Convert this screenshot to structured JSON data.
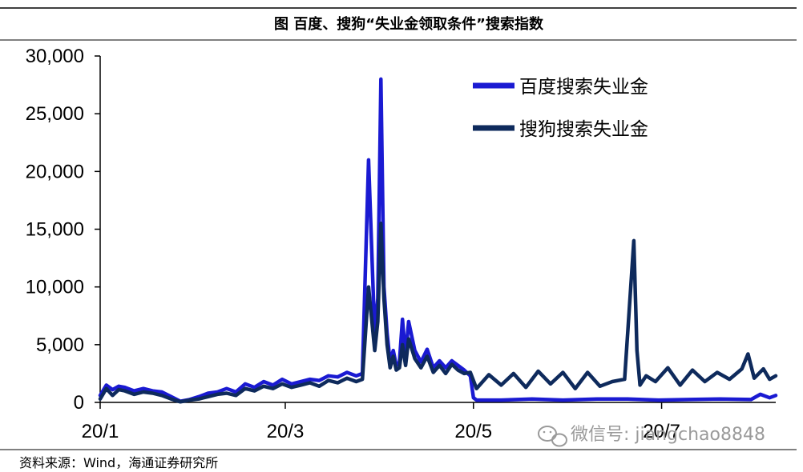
{
  "title": "图  百度、搜狗“失业金领取条件”搜索指数",
  "source": "资料来源：Wind，海通证券研究所",
  "watermark": "微信号: jiangchao8848",
  "colors": {
    "baidu": "#1a1ad2",
    "sogou": "#0e2a5c",
    "axis": "#000000",
    "watermark": "#9a9a9a"
  },
  "chart_data": {
    "type": "line",
    "title": "图  百度、搜狗“失业金领取条件”搜索指数",
    "xlabel": "",
    "ylabel": "",
    "ylim": [
      0,
      30000
    ],
    "yticks": [
      0,
      5000,
      10000,
      15000,
      20000,
      25000,
      30000
    ],
    "ytick_labels": [
      "0",
      "5,000",
      "10,000",
      "15,000",
      "20,000",
      "25,000",
      "30,000"
    ],
    "xlim": [
      "2020-01-01",
      "2020-08-07"
    ],
    "xticks": [
      "2020-01-01",
      "2020-03-01",
      "2020-05-01",
      "2020-07-01"
    ],
    "xtick_labels": [
      "20/1",
      "20/3",
      "20/5",
      "20/7"
    ],
    "grid": false,
    "legend_position": "top-right",
    "series": [
      {
        "name": "百度搜索失业金",
        "color": "#1a1ad2",
        "x": [
          "2020-01-01",
          "2020-01-03",
          "2020-01-05",
          "2020-01-07",
          "2020-01-09",
          "2020-01-12",
          "2020-01-15",
          "2020-01-18",
          "2020-01-21",
          "2020-01-24",
          "2020-01-27",
          "2020-01-30",
          "2020-02-02",
          "2020-02-05",
          "2020-02-08",
          "2020-02-11",
          "2020-02-14",
          "2020-02-17",
          "2020-02-20",
          "2020-02-23",
          "2020-02-26",
          "2020-02-29",
          "2020-03-03",
          "2020-03-06",
          "2020-03-09",
          "2020-03-12",
          "2020-03-15",
          "2020-03-18",
          "2020-03-21",
          "2020-03-24",
          "2020-03-26",
          "2020-03-28",
          "2020-03-30",
          "2020-03-31",
          "2020-04-01",
          "2020-04-02",
          "2020-04-03",
          "2020-04-04",
          "2020-04-05",
          "2020-04-06",
          "2020-04-07",
          "2020-04-08",
          "2020-04-09",
          "2020-04-10",
          "2020-04-12",
          "2020-04-14",
          "2020-04-16",
          "2020-04-18",
          "2020-04-20",
          "2020-04-22",
          "2020-04-24",
          "2020-04-26",
          "2020-04-28",
          "2020-04-30",
          "2020-05-01",
          "2020-05-02",
          "2020-05-10",
          "2020-05-20",
          "2020-05-30",
          "2020-06-10",
          "2020-06-20",
          "2020-06-30",
          "2020-07-10",
          "2020-07-20",
          "2020-07-30",
          "2020-08-02",
          "2020-08-05",
          "2020-08-07"
        ],
        "values": [
          600,
          1500,
          1100,
          1400,
          1300,
          1000,
          1200,
          1000,
          900,
          500,
          100,
          250,
          500,
          800,
          900,
          1200,
          900,
          1600,
          1300,
          1800,
          1500,
          2000,
          1600,
          1800,
          2000,
          1900,
          2300,
          2200,
          2600,
          2300,
          2500,
          21000,
          5800,
          9000,
          28000,
          10000,
          6000,
          3500,
          4500,
          3200,
          3500,
          7200,
          4000,
          7000,
          4500,
          3500,
          4600,
          3000,
          3600,
          3000,
          3600,
          3200,
          2800,
          2300,
          400,
          200,
          200,
          300,
          200,
          300,
          300,
          200,
          250,
          300,
          250,
          700,
          400,
          600
        ]
      },
      {
        "name": "搜狗搜索失业金",
        "color": "#0e2a5c",
        "x": [
          "2020-01-01",
          "2020-01-03",
          "2020-01-05",
          "2020-01-07",
          "2020-01-09",
          "2020-01-12",
          "2020-01-15",
          "2020-01-18",
          "2020-01-21",
          "2020-01-24",
          "2020-01-27",
          "2020-01-30",
          "2020-02-02",
          "2020-02-05",
          "2020-02-08",
          "2020-02-11",
          "2020-02-14",
          "2020-02-17",
          "2020-02-20",
          "2020-02-23",
          "2020-02-26",
          "2020-02-29",
          "2020-03-03",
          "2020-03-06",
          "2020-03-09",
          "2020-03-12",
          "2020-03-15",
          "2020-03-18",
          "2020-03-21",
          "2020-03-24",
          "2020-03-26",
          "2020-03-28",
          "2020-03-30",
          "2020-03-31",
          "2020-04-01",
          "2020-04-02",
          "2020-04-03",
          "2020-04-04",
          "2020-04-05",
          "2020-04-06",
          "2020-04-07",
          "2020-04-08",
          "2020-04-09",
          "2020-04-10",
          "2020-04-12",
          "2020-04-14",
          "2020-04-16",
          "2020-04-18",
          "2020-04-20",
          "2020-04-22",
          "2020-04-24",
          "2020-04-26",
          "2020-04-28",
          "2020-04-30",
          "2020-05-02",
          "2020-05-06",
          "2020-05-10",
          "2020-05-14",
          "2020-05-18",
          "2020-05-22",
          "2020-05-26",
          "2020-05-30",
          "2020-06-03",
          "2020-06-07",
          "2020-06-11",
          "2020-06-15",
          "2020-06-19",
          "2020-06-22",
          "2020-06-23",
          "2020-06-24",
          "2020-06-26",
          "2020-06-29",
          "2020-07-03",
          "2020-07-07",
          "2020-07-11",
          "2020-07-15",
          "2020-07-19",
          "2020-07-23",
          "2020-07-27",
          "2020-07-29",
          "2020-07-31",
          "2020-08-03",
          "2020-08-05",
          "2020-08-07"
        ],
        "values": [
          300,
          1200,
          600,
          1100,
          1000,
          700,
          900,
          800,
          600,
          300,
          50,
          200,
          300,
          500,
          700,
          800,
          600,
          1200,
          1000,
          1400,
          1200,
          1600,
          1300,
          1500,
          1700,
          1400,
          1900,
          1700,
          2100,
          1800,
          2000,
          10000,
          4500,
          7000,
          15500,
          9000,
          5000,
          3000,
          4000,
          2800,
          3000,
          5000,
          3200,
          5500,
          3800,
          3000,
          4000,
          2600,
          3200,
          2500,
          3300,
          2800,
          2500,
          2600,
          1200,
          2400,
          1500,
          2500,
          1300,
          2700,
          1600,
          2600,
          1200,
          2600,
          1400,
          1800,
          2000,
          14000,
          4500,
          1500,
          2300,
          1800,
          3000,
          1500,
          2800,
          1800,
          2600,
          2000,
          2900,
          4200,
          2100,
          2900,
          2000,
          2300
        ]
      }
    ]
  }
}
